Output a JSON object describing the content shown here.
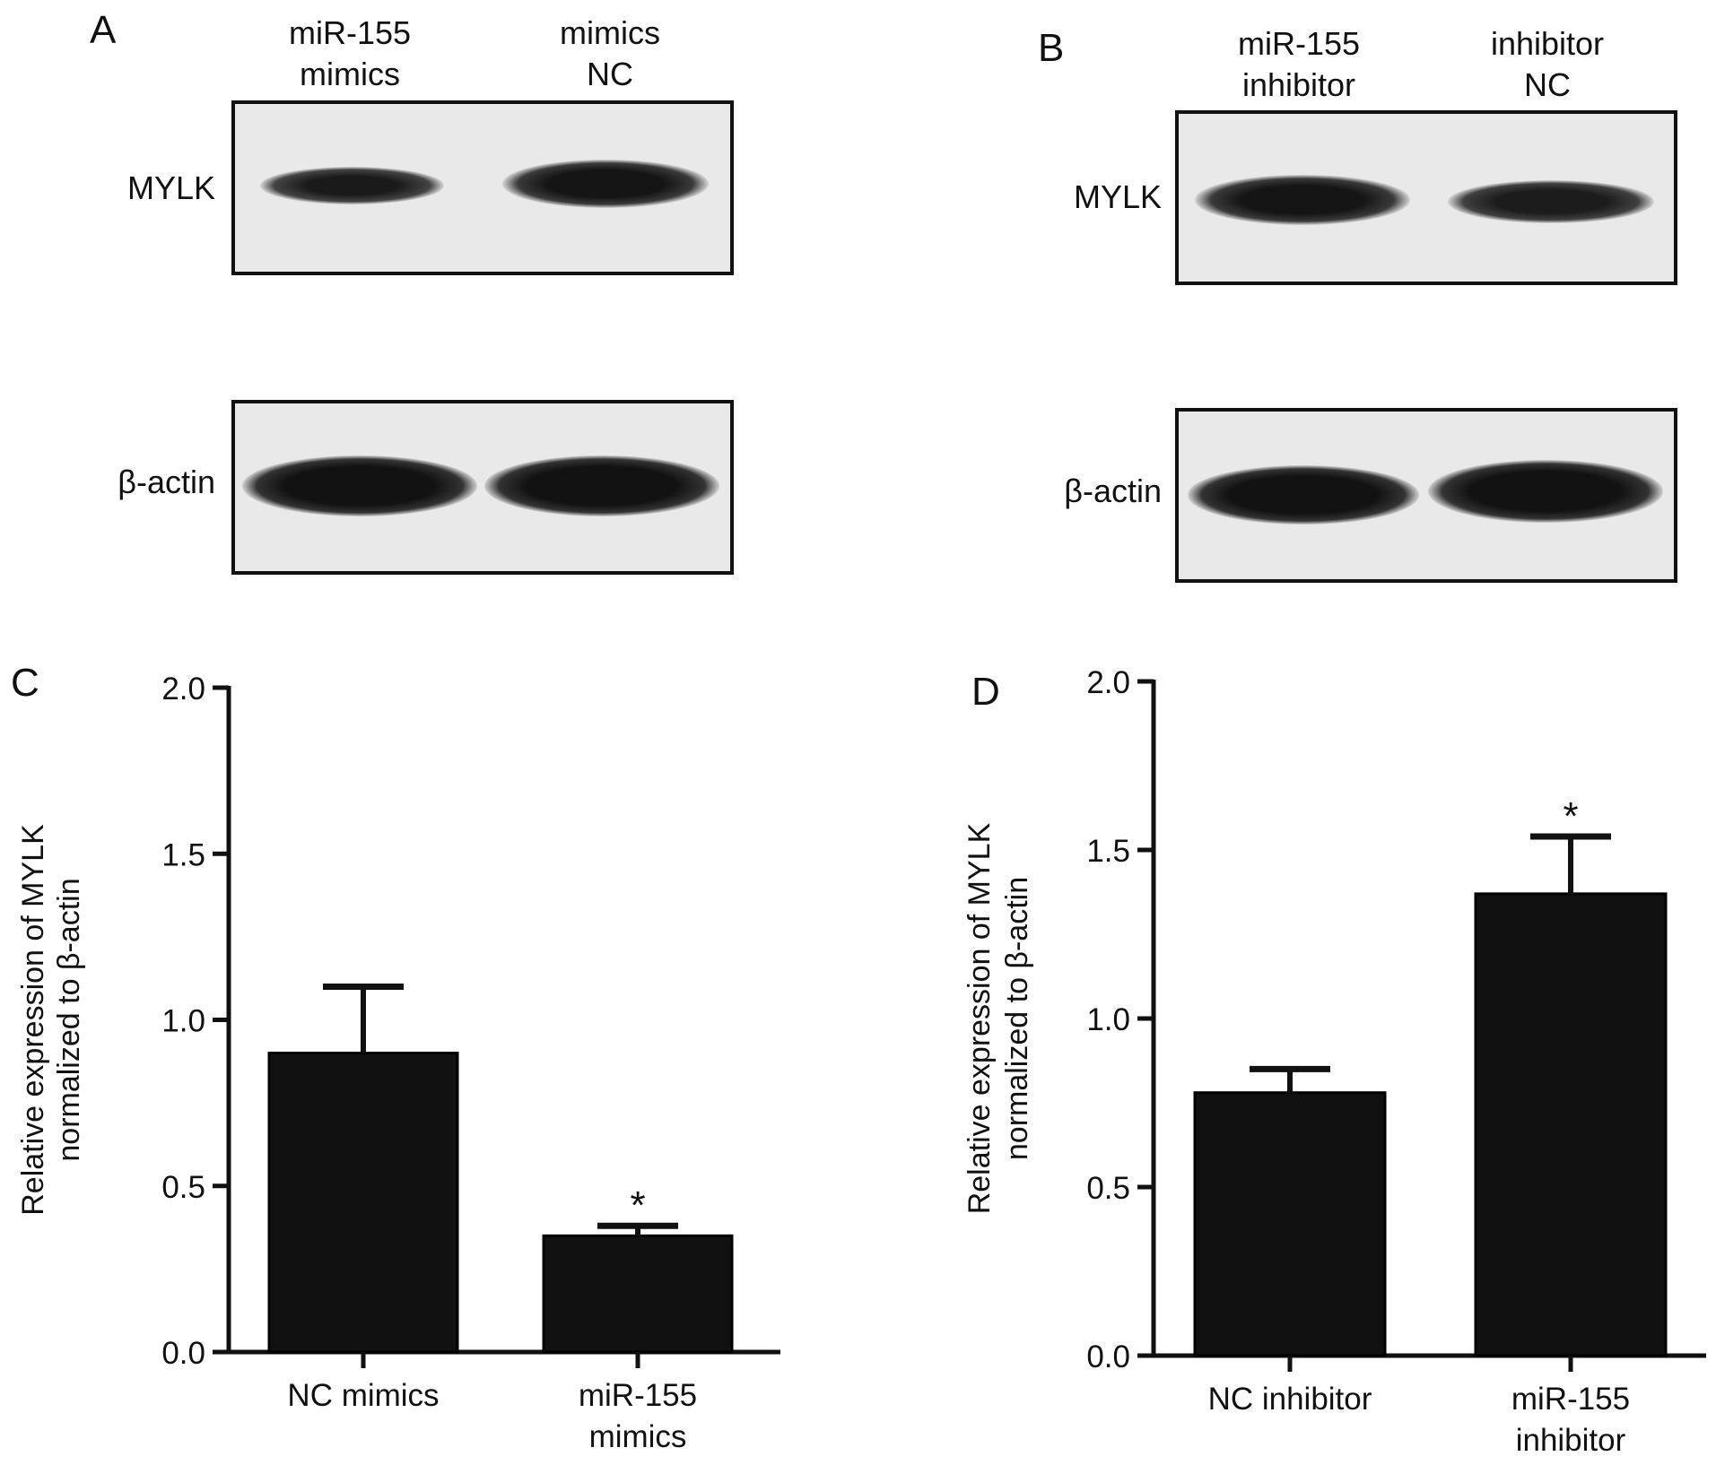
{
  "panels": {
    "A": {
      "letter": "A",
      "lanes": [
        [
          "miR-155",
          "mimics"
        ],
        [
          "mimics",
          "NC"
        ]
      ],
      "rows": [
        "MYLK",
        "β-actin"
      ]
    },
    "B": {
      "letter": "B",
      "lanes": [
        [
          "miR-155",
          "inhibitor"
        ],
        [
          "inhibitor",
          "NC"
        ]
      ],
      "rows": [
        "MYLK",
        "β-actin"
      ]
    }
  },
  "chart_data": [
    {
      "panel": "C",
      "type": "bar",
      "ylabel": [
        "Relative expression of MYLK",
        "normalized to β-actin"
      ],
      "ylim": [
        0,
        2.0
      ],
      "yticks": [
        "0.0",
        "0.5",
        "1.0",
        "1.5",
        "2.0"
      ],
      "categories": [
        [
          "NC mimics"
        ],
        [
          "miR-155",
          "mimics"
        ]
      ],
      "values": [
        0.9,
        0.35
      ],
      "errors": [
        0.2,
        0.03
      ],
      "significance": [
        "",
        "*"
      ],
      "bar_color": "#111111"
    },
    {
      "panel": "D",
      "type": "bar",
      "ylabel": [
        "Relative expression of MYLK",
        "normalized to β-actin"
      ],
      "ylim": [
        0,
        2.0
      ],
      "yticks": [
        "0.0",
        "0.5",
        "1.0",
        "1.5",
        "2.0"
      ],
      "categories": [
        [
          "NC inhibitor"
        ],
        [
          "miR-155",
          "inhibitor"
        ]
      ],
      "values": [
        0.78,
        1.37
      ],
      "errors": [
        0.07,
        0.17
      ],
      "significance": [
        "",
        "*"
      ],
      "bar_color": "#111111"
    }
  ]
}
